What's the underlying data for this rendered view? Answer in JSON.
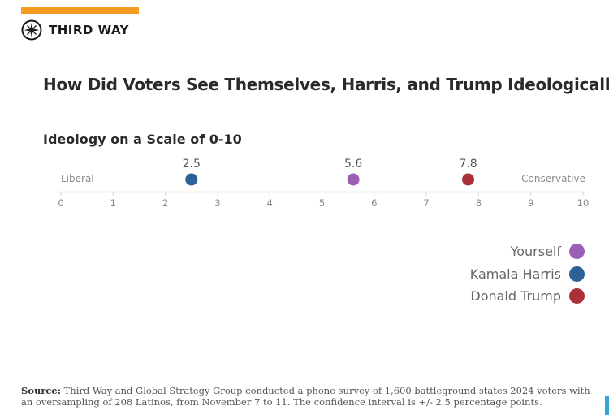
{
  "brand": {
    "name": "THIRD WAY",
    "accent_color": "#f39c1f",
    "logo_icon": "compass-star-icon"
  },
  "title": "How Did Voters See Themselves, Harris, and Trump Ideologically?",
  "chart_data": {
    "type": "scatter",
    "subtitle": "Ideology on a Scale of 0-10",
    "xlim": [
      0,
      10
    ],
    "x_ticks": [
      "0",
      "1",
      "2",
      "3",
      "4",
      "5",
      "6",
      "7",
      "8",
      "9",
      "10"
    ],
    "left_label": "Liberal",
    "right_label": "Conservative",
    "grid": false,
    "legend_position": "bottom-right",
    "series": [
      {
        "name": "Yourself",
        "value": 5.6,
        "label": "5.6",
        "color": "#9b5fb4"
      },
      {
        "name": "Kamala Harris",
        "value": 2.5,
        "label": "2.5",
        "color": "#2c6096"
      },
      {
        "name": "Donald Trump",
        "value": 7.8,
        "label": "7.8",
        "color": "#a83238"
      }
    ]
  },
  "source": {
    "label": "Source:",
    "line1": "Third Way and Global Strategy Group conducted a phone survey of 1,600 battleground states 2024 voters with",
    "line2": "an oversampling of 208 Latinos, from November 7 to 11. The confidence interval is +/- 2.5 percentage points."
  }
}
